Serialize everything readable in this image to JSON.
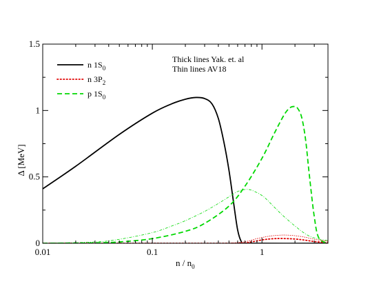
{
  "chart_data": {
    "type": "line",
    "xscale": "log",
    "xlim": [
      0.01,
      4.0
    ],
    "ylim": [
      0,
      1.5
    ],
    "x_ticks": [
      "0.01",
      "0.1",
      "1"
    ],
    "y_ticks": [
      "0",
      "0.5",
      "1",
      "1.5"
    ],
    "xlabel": {
      "main": "n / n",
      "subscript": "0"
    },
    "ylabel": "Δ [MeV]",
    "legend_position": "top-left",
    "legend": [
      {
        "label": "n 1S",
        "subscript": "0",
        "color": "#000000",
        "dash": "solid"
      },
      {
        "label": "n 3P",
        "subscript": "2",
        "color": "#e00000",
        "dash": "dotted"
      },
      {
        "label": "p 1S",
        "subscript": "0",
        "color": "#00d800",
        "dash": "dashed"
      }
    ],
    "annotations": [
      "Thick lines Yak. et. al",
      "Thin lines AV18"
    ],
    "series": [
      {
        "name": "n 1S0",
        "group": "Yak. et. al",
        "color": "#000000",
        "dash": "solid",
        "width": "thick",
        "x": [
          0.01,
          0.02,
          0.05,
          0.1,
          0.15,
          0.2,
          0.25,
          0.3,
          0.35,
          0.4,
          0.45,
          0.5,
          0.55,
          0.6,
          0.65,
          0.7,
          4.0
        ],
        "y": [
          0.41,
          0.58,
          0.82,
          0.98,
          1.05,
          1.085,
          1.098,
          1.09,
          1.05,
          0.94,
          0.76,
          0.55,
          0.31,
          0.1,
          0.01,
          0.0,
          0.0
        ]
      },
      {
        "name": "n 3P2",
        "group": "Yak. et. al",
        "color": "#e00000",
        "dash": "dotted",
        "width": "thick",
        "x": [
          0.01,
          0.1,
          0.5,
          0.7,
          0.8,
          1.0,
          1.2,
          1.5,
          2.0,
          2.5,
          3.0,
          4.0
        ],
        "y": [
          0.0,
          0.0,
          0.0,
          0.003,
          0.01,
          0.025,
          0.033,
          0.036,
          0.032,
          0.023,
          0.013,
          0.004
        ]
      },
      {
        "name": "p 1S0",
        "group": "Yak. et. al",
        "color": "#00d800",
        "dash": "dashed",
        "width": "thick",
        "x": [
          0.01,
          0.03,
          0.05,
          0.1,
          0.2,
          0.3,
          0.5,
          0.7,
          1.0,
          1.3,
          1.6,
          1.8,
          1.95,
          2.1,
          2.3,
          2.5,
          2.7,
          3.0,
          3.3,
          4.0
        ],
        "y": [
          0.0,
          0.003,
          0.01,
          0.035,
          0.09,
          0.15,
          0.28,
          0.43,
          0.64,
          0.83,
          0.97,
          1.02,
          1.03,
          1.02,
          0.95,
          0.78,
          0.52,
          0.2,
          0.04,
          0.0
        ]
      },
      {
        "name": "n 3P2",
        "group": "AV18",
        "color": "#e00000",
        "dash": "dotted",
        "width": "thin",
        "x": [
          0.01,
          0.2,
          0.5,
          0.7,
          0.9,
          1.1,
          1.3,
          1.6,
          2.0,
          2.5,
          3.0,
          4.0
        ],
        "y": [
          0.0,
          0.0,
          0.002,
          0.012,
          0.035,
          0.05,
          0.058,
          0.062,
          0.057,
          0.045,
          0.03,
          0.015
        ]
      },
      {
        "name": "p 1S0",
        "group": "AV18",
        "color": "#00d800",
        "dash": "dashed",
        "width": "thin",
        "x": [
          0.01,
          0.03,
          0.05,
          0.1,
          0.15,
          0.2,
          0.3,
          0.4,
          0.5,
          0.6,
          0.7,
          0.8,
          1.0,
          1.2,
          1.5,
          2.0,
          2.5,
          3.0,
          4.0
        ],
        "y": [
          0.0,
          0.01,
          0.03,
          0.08,
          0.13,
          0.17,
          0.24,
          0.3,
          0.35,
          0.39,
          0.405,
          0.4,
          0.36,
          0.3,
          0.22,
          0.13,
          0.07,
          0.04,
          0.02
        ]
      }
    ]
  }
}
